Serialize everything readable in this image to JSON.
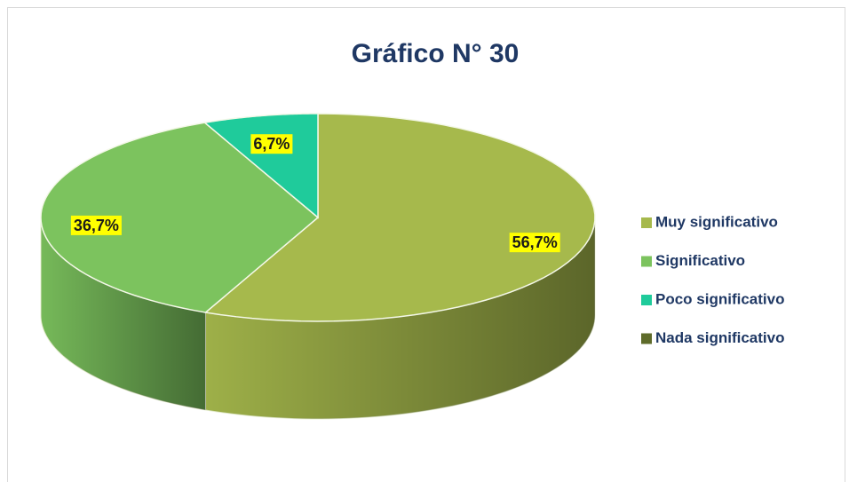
{
  "chart_data": {
    "type": "pie",
    "title": "Gráfico N° 30",
    "categories": [
      "Muy significativo",
      "Significativo",
      "Poco significativo",
      "Nada significativo"
    ],
    "values": [
      56.7,
      36.7,
      6.7,
      0
    ],
    "value_labels": [
      "56,7%",
      "36,7%",
      "6,7%",
      null
    ],
    "colors": [
      "#a6b94c",
      "#7cc35e",
      "#1fcb9b",
      "#5e6b2a"
    ],
    "legend": "right"
  }
}
